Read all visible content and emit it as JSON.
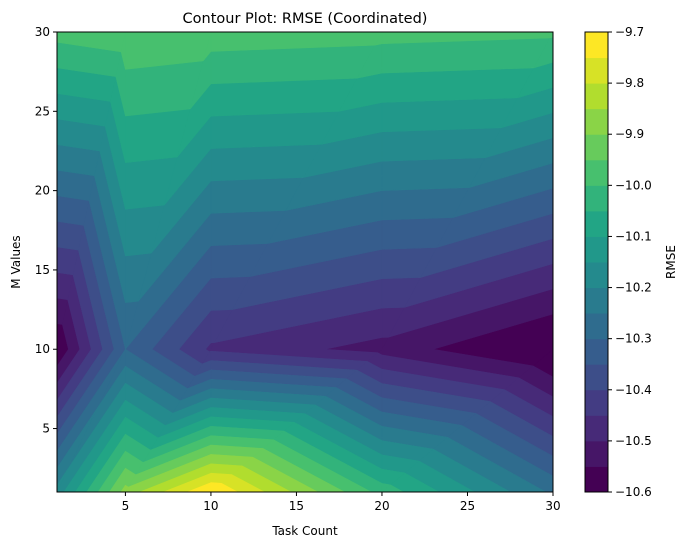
{
  "chart_data": {
    "type": "contour",
    "title": "Contour Plot: RMSE (Coordinated)",
    "xlabel": "Task Count",
    "ylabel": "M Values",
    "colorbar_label": "RMSE",
    "colormap": "viridis",
    "x": [
      1,
      5,
      10,
      20,
      30
    ],
    "y": [
      1,
      10,
      30
    ],
    "z": [
      [
        -10.18,
        -9.88,
        -9.7,
        -10.02,
        -10.26
      ],
      [
        -10.6,
        -10.3,
        -10.46,
        -10.52,
        -10.62
      ],
      [
        -9.98,
        -9.96,
        -9.97,
        -9.98,
        -9.99
      ]
    ],
    "xlim": [
      1,
      30
    ],
    "ylim": [
      1,
      30
    ],
    "xticks": [
      5,
      10,
      15,
      20,
      25,
      30
    ],
    "yticks": [
      5,
      10,
      15,
      20,
      25,
      30
    ],
    "colorbar_range": [
      -10.6,
      -9.7
    ],
    "level_step": 0.05,
    "colorbar_ticks": [
      "−9.7",
      "−9.8",
      "−9.9",
      "−10.0",
      "−10.1",
      "−10.2",
      "−10.3",
      "−10.4",
      "−10.5",
      "−10.6"
    ],
    "colorbar_tick_values": [
      -9.7,
      -9.8,
      -9.9,
      -10.0,
      -10.1,
      -10.2,
      -10.3,
      -10.4,
      -10.5,
      -10.6
    ]
  }
}
